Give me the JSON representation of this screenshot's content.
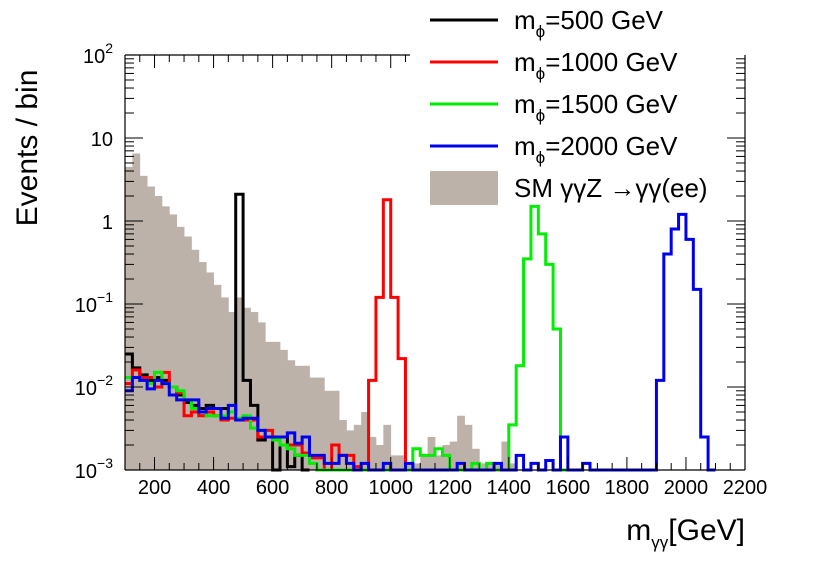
{
  "chart_data": {
    "type": "histogram",
    "yscale": "log",
    "xlabel_main": "m",
    "xlabel_sub": "γγ",
    "xlabel_unit": "[GeV]",
    "ylabel": "Events / bin",
    "xlim": [
      100,
      2200
    ],
    "ylim": [
      0.001,
      100
    ],
    "bin_width": 25,
    "x_ticks": [
      200,
      400,
      600,
      800,
      1000,
      1200,
      1400,
      1600,
      1800,
      2000,
      2200
    ],
    "y_ticks": [
      {
        "value": 0.001,
        "base": "10",
        "exp": "−3"
      },
      {
        "value": 0.01,
        "base": "10",
        "exp": "−2"
      },
      {
        "value": 0.1,
        "base": "10",
        "exp": "−1"
      },
      {
        "value": 1,
        "base": "1",
        "exp": ""
      },
      {
        "value": 10,
        "base": "10",
        "exp": ""
      },
      {
        "value": 100,
        "base": "10",
        "exp": "2"
      }
    ],
    "background": {
      "name": "SM γγZ →γγ(ee)",
      "color": "#bcb2a9",
      "edges": [
        100,
        125,
        150,
        175,
        200,
        225,
        250,
        275,
        300,
        325,
        350,
        375,
        400,
        425,
        450,
        475,
        500,
        525,
        550,
        575,
        600,
        625,
        650,
        675,
        700,
        725,
        750,
        775,
        800,
        825,
        850,
        875,
        900,
        925,
        950,
        975,
        1000,
        1025,
        1050,
        1075,
        1100,
        1125,
        1150,
        1175,
        1200,
        1225,
        1250,
        1275,
        1300,
        1325,
        1350,
        1375,
        1400,
        1425
      ],
      "values": [
        4.5,
        6.5,
        3.5,
        2.6,
        2.0,
        1.5,
        1.2,
        0.85,
        0.65,
        0.45,
        0.32,
        0.24,
        0.17,
        0.12,
        0.08,
        0.12,
        0.09,
        0.08,
        0.06,
        0.035,
        0.035,
        0.028,
        0.021,
        0.018,
        0.018,
        0.013,
        0.013,
        0.009,
        0.009,
        0.004,
        0.003,
        0.0035,
        0.005,
        0.0025,
        0.002,
        0.0035,
        0.0015,
        0.0015,
        0.0012,
        0.0012,
        0.0015,
        0.0025,
        0.0015,
        0.002,
        0.0022,
        0.0045,
        0.0035,
        0.0018,
        0.0012,
        0.0012,
        0.0012,
        0.0022,
        0.0012
      ]
    },
    "series": [
      {
        "name": "500 GeV",
        "color": "#000000",
        "steps": [
          [
            100,
            0.025
          ],
          [
            125,
            0.017
          ],
          [
            150,
            0.014
          ],
          [
            175,
            0.012
          ],
          [
            200,
            0.013
          ],
          [
            225,
            0.012
          ],
          [
            250,
            0.01
          ],
          [
            275,
            0.008
          ],
          [
            300,
            0.0065
          ],
          [
            325,
            0.006
          ],
          [
            350,
            0.0055
          ],
          [
            375,
            0.006
          ],
          [
            400,
            0.0055
          ],
          [
            425,
            0.0055
          ],
          [
            450,
            0.005
          ],
          [
            475,
            2.1
          ],
          [
            500,
            0.012
          ],
          [
            525,
            0.006
          ],
          [
            550,
            0.0023
          ],
          [
            575,
            0.0025
          ],
          [
            600,
            0.001
          ],
          [
            625,
            0.0025
          ],
          [
            650,
            0.0011
          ],
          [
            675,
            0.0015
          ],
          [
            700,
            0.001
          ]
        ]
      },
      {
        "name": "1000 GeV",
        "color": "#ff0000",
        "steps": [
          [
            100,
            0.011
          ],
          [
            125,
            0.016
          ],
          [
            150,
            0.013
          ],
          [
            175,
            0.013
          ],
          [
            200,
            0.01
          ],
          [
            225,
            0.015
          ],
          [
            250,
            0.01
          ],
          [
            275,
            0.0085
          ],
          [
            300,
            0.0045
          ],
          [
            325,
            0.005
          ],
          [
            350,
            0.0045
          ],
          [
            375,
            0.005
          ],
          [
            400,
            0.0045
          ],
          [
            425,
            0.004
          ],
          [
            450,
            0.0042
          ],
          [
            475,
            0.004
          ],
          [
            500,
            0.004
          ],
          [
            525,
            0.004
          ],
          [
            550,
            0.0025
          ],
          [
            575,
            0.003
          ],
          [
            600,
            0.0025
          ],
          [
            625,
            0.002
          ],
          [
            650,
            0.002
          ],
          [
            675,
            0.002
          ],
          [
            700,
            0.0016
          ],
          [
            725,
            0.0014
          ],
          [
            750,
            0.0014
          ],
          [
            775,
            0.001
          ],
          [
            800,
            0.002
          ],
          [
            825,
            0.0015
          ],
          [
            850,
            0.0015
          ],
          [
            875,
            0.0011
          ],
          [
            900,
            0.001
          ],
          [
            925,
            0.012
          ],
          [
            950,
            0.12
          ],
          [
            975,
            1.8
          ],
          [
            1000,
            0.12
          ],
          [
            1025,
            0.022
          ],
          [
            1050,
            0.001
          ]
        ]
      },
      {
        "name": "1500 GeV",
        "color": "#00ee00",
        "steps": [
          [
            100,
            0.013
          ],
          [
            125,
            0.013
          ],
          [
            150,
            0.012
          ],
          [
            175,
            0.011
          ],
          [
            200,
            0.015
          ],
          [
            225,
            0.011
          ],
          [
            250,
            0.01
          ],
          [
            275,
            0.009
          ],
          [
            300,
            0.007
          ],
          [
            325,
            0.0055
          ],
          [
            350,
            0.005
          ],
          [
            375,
            0.0045
          ],
          [
            400,
            0.0045
          ],
          [
            425,
            0.0045
          ],
          [
            450,
            0.005
          ],
          [
            475,
            0.0042
          ],
          [
            500,
            0.0045
          ],
          [
            525,
            0.0032
          ],
          [
            550,
            0.003
          ],
          [
            575,
            0.0025
          ],
          [
            600,
            0.0023
          ],
          [
            625,
            0.002
          ],
          [
            650,
            0.0018
          ],
          [
            675,
            0.0015
          ],
          [
            700,
            0.0015
          ],
          [
            725,
            0.0012
          ],
          [
            750,
            0.001
          ],
          [
            775,
            0.001
          ],
          [
            800,
            0.001
          ],
          [
            825,
            0.001
          ],
          [
            850,
            0.001
          ],
          [
            875,
            0.001
          ],
          [
            900,
            0.001
          ],
          [
            925,
            0.001
          ],
          [
            950,
            0.001
          ],
          [
            975,
            0.001
          ],
          [
            1000,
            0.001
          ],
          [
            1025,
            0.001
          ],
          [
            1050,
            0.001
          ],
          [
            1075,
            0.0018
          ],
          [
            1100,
            0.0015
          ],
          [
            1125,
            0.0015
          ],
          [
            1150,
            0.0018
          ],
          [
            1175,
            0.0015
          ],
          [
            1200,
            0.001
          ],
          [
            1225,
            0.001
          ],
          [
            1250,
            0.001
          ],
          [
            1275,
            0.0012
          ],
          [
            1300,
            0.001
          ],
          [
            1325,
            0.0012
          ],
          [
            1350,
            0.001
          ],
          [
            1375,
            0.001
          ],
          [
            1400,
            0.0035
          ],
          [
            1425,
            0.018
          ],
          [
            1450,
            0.35
          ],
          [
            1475,
            1.5
          ],
          [
            1500,
            0.7
          ],
          [
            1525,
            0.3
          ],
          [
            1550,
            0.05
          ],
          [
            1575,
            0.001
          ]
        ]
      },
      {
        "name": "2000 GeV",
        "color": "#0000ee",
        "steps": [
          [
            100,
            0.009
          ],
          [
            125,
            0.013
          ],
          [
            150,
            0.012
          ],
          [
            175,
            0.0095
          ],
          [
            200,
            0.012
          ],
          [
            225,
            0.011
          ],
          [
            250,
            0.008
          ],
          [
            275,
            0.007
          ],
          [
            300,
            0.007
          ],
          [
            325,
            0.007
          ],
          [
            350,
            0.005
          ],
          [
            375,
            0.0055
          ],
          [
            400,
            0.0055
          ],
          [
            425,
            0.0042
          ],
          [
            450,
            0.006
          ],
          [
            475,
            0.004
          ],
          [
            500,
            0.0042
          ],
          [
            525,
            0.0042
          ],
          [
            550,
            0.003
          ],
          [
            575,
            0.0025
          ],
          [
            600,
            0.0025
          ],
          [
            625,
            0.0025
          ],
          [
            650,
            0.0028
          ],
          [
            675,
            0.0021
          ],
          [
            700,
            0.0025
          ],
          [
            725,
            0.0015
          ],
          [
            750,
            0.0015
          ],
          [
            775,
            0.0012
          ],
          [
            800,
            0.0012
          ],
          [
            825,
            0.0015
          ],
          [
            850,
            0.0012
          ],
          [
            875,
            0.001
          ],
          [
            900,
            0.0012
          ],
          [
            925,
            0.001
          ],
          [
            950,
            0.001
          ],
          [
            975,
            0.0012
          ],
          [
            1000,
            0.001
          ],
          [
            1025,
            0.001
          ],
          [
            1050,
            0.0012
          ],
          [
            1075,
            0.001
          ],
          [
            1100,
            0.001
          ],
          [
            1125,
            0.001
          ],
          [
            1150,
            0.001
          ],
          [
            1175,
            0.001
          ],
          [
            1200,
            0.001
          ],
          [
            1225,
            0.0012
          ],
          [
            1250,
            0.001
          ],
          [
            1275,
            0.001
          ],
          [
            1300,
            0.001
          ],
          [
            1325,
            0.001
          ],
          [
            1350,
            0.0012
          ],
          [
            1375,
            0.001
          ],
          [
            1400,
            0.001
          ],
          [
            1425,
            0.0015
          ],
          [
            1450,
            0.001
          ],
          [
            1475,
            0.0012
          ],
          [
            1500,
            0.001
          ],
          [
            1525,
            0.0013
          ],
          [
            1550,
            0.001
          ],
          [
            1575,
            0.0025
          ],
          [
            1600,
            0.001
          ],
          [
            1625,
            0.001
          ],
          [
            1650,
            0.0012
          ],
          [
            1675,
            0.001
          ],
          [
            1700,
            0.001
          ],
          [
            1725,
            0.001
          ],
          [
            1750,
            0.001
          ],
          [
            1775,
            0.001
          ],
          [
            1800,
            0.001
          ],
          [
            1825,
            0.001
          ],
          [
            1850,
            0.001
          ],
          [
            1875,
            0.001
          ],
          [
            1900,
            0.012
          ],
          [
            1925,
            0.4
          ],
          [
            1950,
            0.8
          ],
          [
            1975,
            1.2
          ],
          [
            2000,
            0.6
          ],
          [
            2025,
            0.15
          ],
          [
            2050,
            0.0025
          ],
          [
            2075,
            0.001
          ]
        ]
      }
    ],
    "legend": {
      "placement": "top-right",
      "entries": [
        {
          "prefix": "m",
          "sub": "ϕ",
          "suffix": "=500 GeV",
          "color": "#000000",
          "kind": "line"
        },
        {
          "prefix": "m",
          "sub": "ϕ",
          "suffix": "=1000 GeV",
          "color": "#ff0000",
          "kind": "line"
        },
        {
          "prefix": "m",
          "sub": "ϕ",
          "suffix": "=1500 GeV",
          "color": "#00ee00",
          "kind": "line"
        },
        {
          "prefix": "m",
          "sub": "ϕ",
          "suffix": "=2000 GeV",
          "color": "#0000ee",
          "kind": "line"
        },
        {
          "prefix": "SM γγZ →γγ(ee)",
          "sub": "",
          "suffix": "",
          "color": "#bcb2a9",
          "kind": "fill"
        }
      ]
    }
  }
}
